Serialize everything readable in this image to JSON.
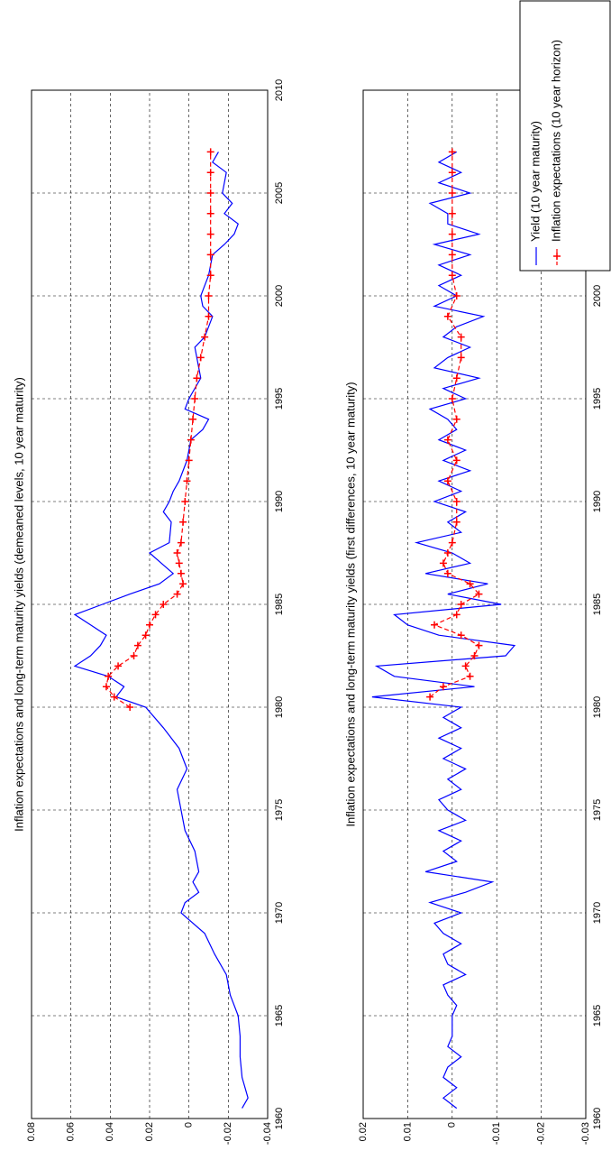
{
  "chart_data": [
    {
      "type": "line",
      "title": "Inflation expectations and long-term maturity yields (demeaned levels, 10 year maturity)",
      "xlim": [
        1960,
        2010
      ],
      "xticks": [
        1960,
        1965,
        1970,
        1975,
        1980,
        1985,
        1990,
        1995,
        2000,
        2005,
        2010
      ],
      "ylim": [
        -0.04,
        0.08
      ],
      "yticks": [
        0.08,
        0.06,
        0.04,
        0.02,
        0,
        -0.02,
        -0.04
      ],
      "grid": true,
      "series": [
        {
          "color": "#0000ff",
          "style": "solid",
          "x": [
            1960.5,
            1961,
            1962,
            1963,
            1964,
            1965,
            1966,
            1967,
            1968,
            1969,
            1970,
            1970.5,
            1971,
            1971.5,
            1972,
            1973,
            1974,
            1975,
            1976,
            1977,
            1978,
            1979,
            1980,
            1980.5,
            1981,
            1981.5,
            1982,
            1982.5,
            1983,
            1983.5,
            1984,
            1984.5,
            1985,
            1985.5,
            1986,
            1986.5,
            1987,
            1987.5,
            1988,
            1989,
            1989.5,
            1990,
            1990.5,
            1991,
            1992,
            1993,
            1993.5,
            1994,
            1994.5,
            1995,
            1996,
            1997,
            1997.5,
            1998,
            1999,
            1999.5,
            2000,
            2001,
            2002,
            2002.5,
            2003,
            2003.5,
            2004,
            2004.5,
            2005,
            2006,
            2006.5,
            2007
          ],
          "values": [
            -0.027,
            -0.03,
            -0.027,
            -0.026,
            -0.026,
            -0.025,
            -0.021,
            -0.019,
            -0.013,
            -0.008,
            0.004,
            0.002,
            -0.005,
            -0.002,
            -0.005,
            -0.003,
            0.002,
            0.004,
            0.006,
            0.001,
            0.005,
            0.013,
            0.022,
            0.037,
            0.033,
            0.041,
            0.058,
            0.05,
            0.045,
            0.042,
            0.05,
            0.058,
            0.044,
            0.03,
            0.015,
            0.008,
            0.014,
            0.02,
            0.01,
            0.009,
            0.013,
            0.01,
            0.008,
            0.005,
            0.001,
            -0.001,
            -0.007,
            -0.01,
            0.002,
            0,
            -0.006,
            -0.004,
            -0.003,
            -0.008,
            -0.012,
            -0.007,
            -0.006,
            -0.01,
            -0.012,
            -0.018,
            -0.023,
            -0.025,
            -0.018,
            -0.022,
            -0.017,
            -0.019,
            -0.012,
            -0.015
          ]
        },
        {
          "color": "#ff0000",
          "style": "dashed",
          "marker": "+",
          "x": [
            1980,
            1980.5,
            1981,
            1981.5,
            1982,
            1982.5,
            1983,
            1983.5,
            1984,
            1984.5,
            1985,
            1985.5,
            1986,
            1986.5,
            1987,
            1987.5,
            1988,
            1989,
            1990,
            1991,
            1992,
            1993,
            1994,
            1995,
            1996,
            1997,
            1998,
            1999,
            2000,
            2001,
            2002,
            2003,
            2004,
            2005,
            2006,
            2007
          ],
          "values": [
            0.03,
            0.038,
            0.042,
            0.041,
            0.036,
            0.028,
            0.026,
            0.022,
            0.02,
            0.017,
            0.013,
            0.006,
            0.003,
            0.004,
            0.005,
            0.006,
            0.004,
            0.003,
            0.002,
            0.001,
            0,
            -0.001,
            -0.002,
            -0.003,
            -0.004,
            -0.006,
            -0.008,
            -0.01,
            -0.01,
            -0.011,
            -0.011,
            -0.011,
            -0.011,
            -0.011,
            -0.011,
            -0.011
          ]
        }
      ]
    },
    {
      "type": "line",
      "title": "Inflation expectations and long-term maturity yields (first differences, 10 year maturity)",
      "xlim": [
        1960,
        2010
      ],
      "xticks": [
        1960,
        1965,
        1970,
        1975,
        1980,
        1985,
        1990,
        1995,
        2000,
        2005,
        2010
      ],
      "ylim": [
        -0.03,
        0.02
      ],
      "yticks": [
        0.02,
        0.01,
        0,
        -0.01,
        -0.02,
        -0.03
      ],
      "grid": true,
      "series": [
        {
          "name": "Yield (10 year maturity)",
          "color": "#0000ff",
          "style": "solid",
          "x": [
            1960.5,
            1961,
            1961.5,
            1962,
            1962.5,
            1963,
            1963.5,
            1964,
            1964.5,
            1965,
            1965.5,
            1966,
            1966.5,
            1967,
            1967.5,
            1968,
            1968.5,
            1969,
            1969.5,
            1970,
            1970.5,
            1971,
            1971.5,
            1972,
            1972.5,
            1973,
            1973.5,
            1974,
            1974.5,
            1975,
            1975.5,
            1976,
            1976.5,
            1977,
            1977.5,
            1978,
            1978.5,
            1979,
            1979.5,
            1980,
            1980.5,
            1981,
            1981.5,
            1982,
            1982.5,
            1983,
            1983.5,
            1984,
            1984.5,
            1985,
            1985.5,
            1986,
            1986.5,
            1987,
            1987.5,
            1988,
            1988.5,
            1989,
            1989.5,
            1990,
            1990.5,
            1991,
            1991.5,
            1992,
            1992.5,
            1993,
            1993.5,
            1994,
            1994.5,
            1995,
            1995.5,
            1996,
            1996.5,
            1997,
            1997.5,
            1998,
            1998.5,
            1999,
            1999.5,
            2000,
            2000.5,
            2001,
            2001.5,
            2002,
            2002.5,
            2003,
            2003.5,
            2004,
            2004.5,
            2005,
            2005.5,
            2006,
            2006.5,
            2007
          ],
          "values": [
            -0.001,
            0.002,
            -0.001,
            0.002,
            0.001,
            -0.002,
            0.001,
            0,
            0,
            0,
            -0.001,
            0.001,
            0.002,
            -0.003,
            0.001,
            0.002,
            -0.002,
            0.002,
            0.004,
            -0.002,
            0.005,
            -0.003,
            -0.009,
            0.006,
            -0.001,
            0.002,
            -0.002,
            0.003,
            -0.003,
            0.001,
            0.003,
            -0.002,
            0.001,
            -0.003,
            0.002,
            -0.002,
            0.003,
            -0.002,
            0.002,
            -0.002,
            0.018,
            -0.005,
            0.013,
            0.017,
            -0.012,
            -0.014,
            0.003,
            0.01,
            0.013,
            -0.011,
            0.001,
            -0.008,
            0.006,
            -0.004,
            0,
            0.008,
            -0.002,
            0.001,
            -0.003,
            0.004,
            -0.002,
            0.003,
            -0.004,
            0.002,
            -0.003,
            0.003,
            -0.001,
            0.001,
            0.005,
            -0.003,
            0.002,
            -0.006,
            0.004,
            0.001,
            -0.004,
            0.002,
            -0.001,
            -0.007,
            0.004,
            -0.001,
            0.003,
            -0.002,
            0.003,
            -0.004,
            0.004,
            -0.006,
            0.001,
            0.001,
            0.005,
            -0.004,
            0.003,
            -0.002,
            0.003,
            -0.001
          ]
        },
        {
          "name": "Inflation expectations (10 year horizon)",
          "color": "#ff0000",
          "style": "dashed",
          "marker": "+",
          "x": [
            1980.5,
            1981,
            1981.5,
            1982,
            1982.5,
            1983,
            1983.5,
            1984,
            1984.5,
            1985,
            1985.5,
            1986,
            1986.5,
            1987,
            1987.5,
            1988,
            1989,
            1990,
            1991,
            1992,
            1993,
            1994,
            1995,
            1996,
            1997,
            1998,
            1999,
            2000,
            2001,
            2002,
            2003,
            2004,
            2005,
            2006,
            2007
          ],
          "values": [
            0.005,
            0.002,
            -0.004,
            -0.003,
            -0.005,
            -0.006,
            -0.002,
            0.004,
            -0.001,
            -0.002,
            -0.006,
            -0.004,
            0.001,
            0.002,
            0.001,
            0,
            -0.001,
            -0.001,
            0.001,
            -0.001,
            0.001,
            -0.001,
            0,
            -0.001,
            -0.002,
            -0.002,
            0.001,
            -0.001,
            0,
            0,
            0,
            0,
            0,
            0,
            0
          ]
        }
      ]
    }
  ]
}
